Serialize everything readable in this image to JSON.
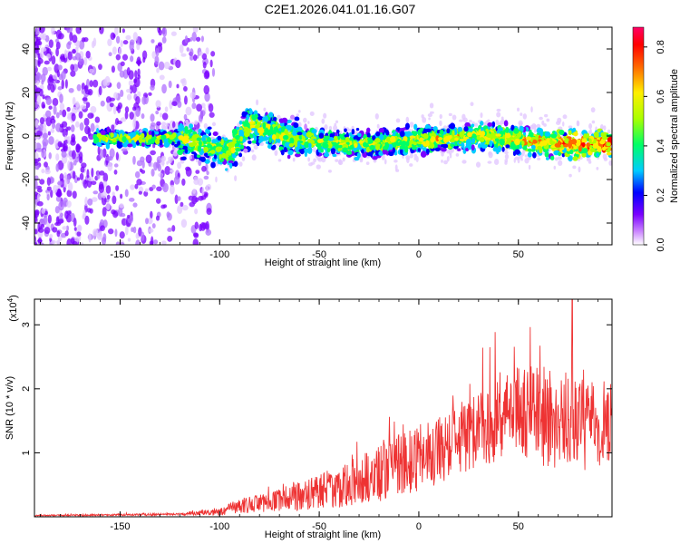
{
  "title": "C2E1.2026.041.01.16.G07",
  "chart_data": [
    {
      "type": "heatmap",
      "xlabel": "Height of straight line (km)",
      "ylabel": "Frequency (Hz)",
      "xlim": [
        -193,
        97
      ],
      "ylim": [
        -50,
        50
      ],
      "xticks": [
        -150,
        -100,
        -50,
        0,
        50
      ],
      "xtick_labels": [
        "-150",
        "-100",
        "-50",
        "0",
        "50"
      ],
      "yticks": [
        -40,
        -20,
        0,
        20,
        40
      ],
      "ytick_labels": [
        "-40",
        "-20",
        "0",
        "20",
        "40"
      ],
      "colorbar": {
        "label": "Normalized spectral amplitude",
        "range": [
          0,
          0.88
        ],
        "ticks": [
          0.0,
          0.2,
          0.4,
          0.6,
          0.8
        ],
        "tick_labels": [
          "0.0",
          "0.2",
          "0.4",
          "0.6",
          "0.8"
        ],
        "colors": [
          "#ffffff",
          "#cc88ff",
          "#7a00ff",
          "#0000ff",
          "#00ccff",
          "#00ff66",
          "#aaff00",
          "#ffee00",
          "#ff6600",
          "#ff0000",
          "#ff0066"
        ]
      },
      "ridge_mean_hz": [
        {
          "x": -160,
          "y": -1
        },
        {
          "x": -120,
          "y": -1
        },
        {
          "x": -95,
          "y": -7
        },
        {
          "x": -85,
          "y": 5
        },
        {
          "x": -60,
          "y": -2
        },
        {
          "x": -30,
          "y": -4
        },
        {
          "x": 0,
          "y": -2
        },
        {
          "x": 30,
          "y": 0
        },
        {
          "x": 60,
          "y": -3
        },
        {
          "x": 95,
          "y": -4
        }
      ]
    },
    {
      "type": "line",
      "xlabel": "Height of straight line (km)",
      "ylabel": "SNR (10 * v/v)",
      "scale_label": "(x10",
      "scale_exp": "4",
      "scale_close": ")",
      "xlim": [
        -193,
        97
      ],
      "ylim": [
        0,
        3.4
      ],
      "xticks": [
        -150,
        -100,
        -50,
        0,
        50
      ],
      "xtick_labels": [
        "-150",
        "-100",
        "-50",
        "0",
        "50"
      ],
      "yticks": [
        1,
        2,
        3
      ],
      "ytick_labels": [
        "1",
        "2",
        "3"
      ],
      "line_color": "#ee3333",
      "envelope": [
        {
          "x": -193,
          "mean": 0.02,
          "amp": 0.01
        },
        {
          "x": -120,
          "mean": 0.04,
          "amp": 0.02
        },
        {
          "x": -100,
          "mean": 0.08,
          "amp": 0.06
        },
        {
          "x": -90,
          "mean": 0.18,
          "amp": 0.12
        },
        {
          "x": -75,
          "mean": 0.22,
          "amp": 0.15
        },
        {
          "x": -55,
          "mean": 0.35,
          "amp": 0.25
        },
        {
          "x": -30,
          "mean": 0.55,
          "amp": 0.4
        },
        {
          "x": -10,
          "mean": 0.8,
          "amp": 0.5
        },
        {
          "x": 10,
          "mean": 1.05,
          "amp": 0.55
        },
        {
          "x": 30,
          "mean": 1.4,
          "amp": 0.6
        },
        {
          "x": 50,
          "mean": 1.6,
          "amp": 0.75
        },
        {
          "x": 70,
          "mean": 1.55,
          "amp": 0.8
        },
        {
          "x": 97,
          "mean": 1.4,
          "amp": 0.7
        }
      ],
      "peak": {
        "x": 77,
        "y": 3.4
      }
    }
  ]
}
